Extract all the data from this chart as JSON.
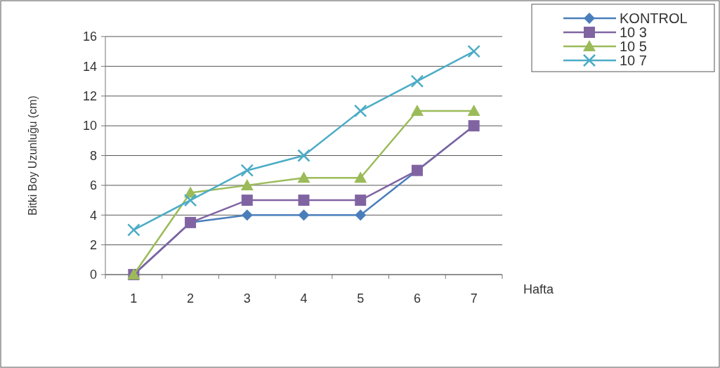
{
  "chart_data": {
    "type": "line",
    "ylabel": "Bitki Boy Uzunluğu (cm)",
    "xlabel": "Hafta",
    "categories": [
      "1",
      "2",
      "3",
      "4",
      "5",
      "6",
      "7"
    ],
    "ylim": [
      0,
      16
    ],
    "yticks": [
      0,
      2,
      4,
      6,
      8,
      10,
      12,
      14,
      16
    ],
    "grid": "y",
    "legend": "top right",
    "series": [
      {
        "name": "KONTROL",
        "color": "#4a7ebb",
        "marker": "diamond",
        "values": [
          0,
          3.5,
          4,
          4,
          4,
          7,
          10
        ]
      },
      {
        "name": "10 3",
        "color": "#8064a2",
        "marker": "square",
        "values": [
          0,
          3.5,
          5,
          5,
          5,
          7,
          10
        ]
      },
      {
        "name": "10 5",
        "color": "#9bbb59",
        "marker": "triangle",
        "values": [
          0,
          5.5,
          6,
          6.5,
          6.5,
          11,
          11
        ]
      },
      {
        "name": "10 7",
        "color": "#4bacc6",
        "marker": "cross",
        "values": [
          3,
          5,
          7,
          8,
          11,
          13,
          15
        ]
      }
    ]
  }
}
